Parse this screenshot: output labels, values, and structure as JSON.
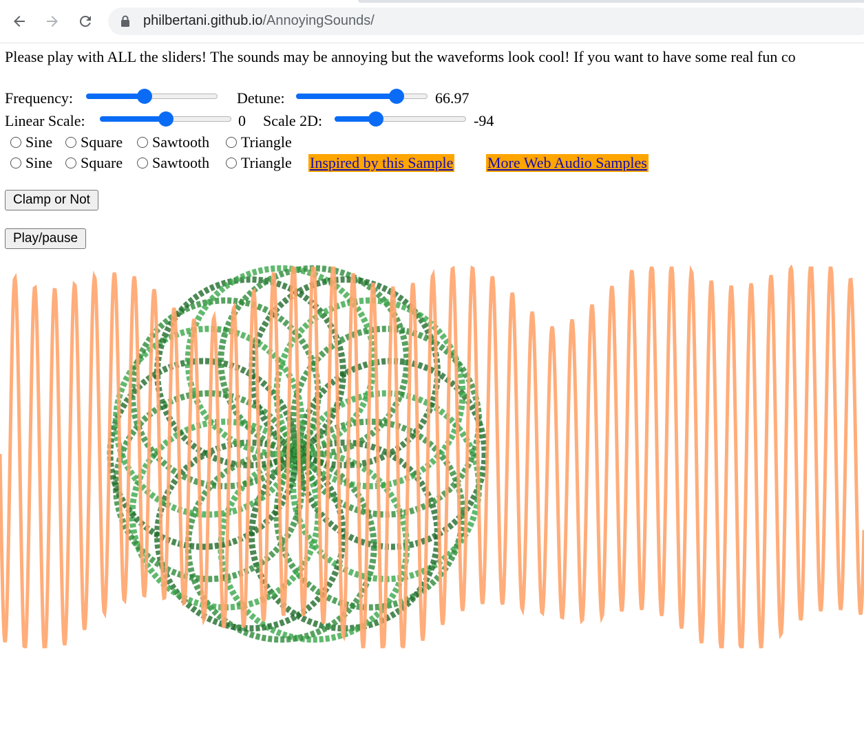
{
  "browser": {
    "url_host": "philbertani.github.io",
    "url_path": "/AnnoyingSounds/",
    "icons": [
      "back-arrow-icon",
      "forward-arrow-icon",
      "reload-icon",
      "lock-icon"
    ]
  },
  "intro_text": "Please play with ALL the sliders! The sounds may be annoying but the waveforms look cool! If you want to have some real fun co",
  "sliders": {
    "frequency": {
      "label": "Frequency:",
      "level": 0.44
    },
    "detune": {
      "label": "Detune:",
      "level": 0.8,
      "value": "66.97"
    },
    "linear_scale": {
      "label": "Linear Scale:",
      "level": 0.5,
      "value": "0"
    },
    "scale_2d": {
      "label": "Scale 2D:",
      "level": 0.29,
      "value": "-94"
    }
  },
  "waveform_options": [
    "Sine",
    "Square",
    "Sawtooth",
    "Triangle"
  ],
  "radio_rows": [
    {
      "options": [
        "Sine",
        "Square",
        "Sawtooth",
        "Triangle"
      ],
      "selected": null
    },
    {
      "options": [
        "Sine",
        "Square",
        "Sawtooth",
        "Triangle"
      ],
      "selected": null
    }
  ],
  "links": {
    "inspired": "Inspired by this Sample",
    "more_samples": "More Web Audio Samples"
  },
  "buttons": {
    "clamp": "Clamp or Not",
    "play_pause": "Play/pause"
  },
  "colors": {
    "slider_accent": "#0a6cf5",
    "link_bg": "#ffa500",
    "link_text": "#1a0dab",
    "waveform": "#ffa46b",
    "spirograph": "#2e8b3a"
  }
}
